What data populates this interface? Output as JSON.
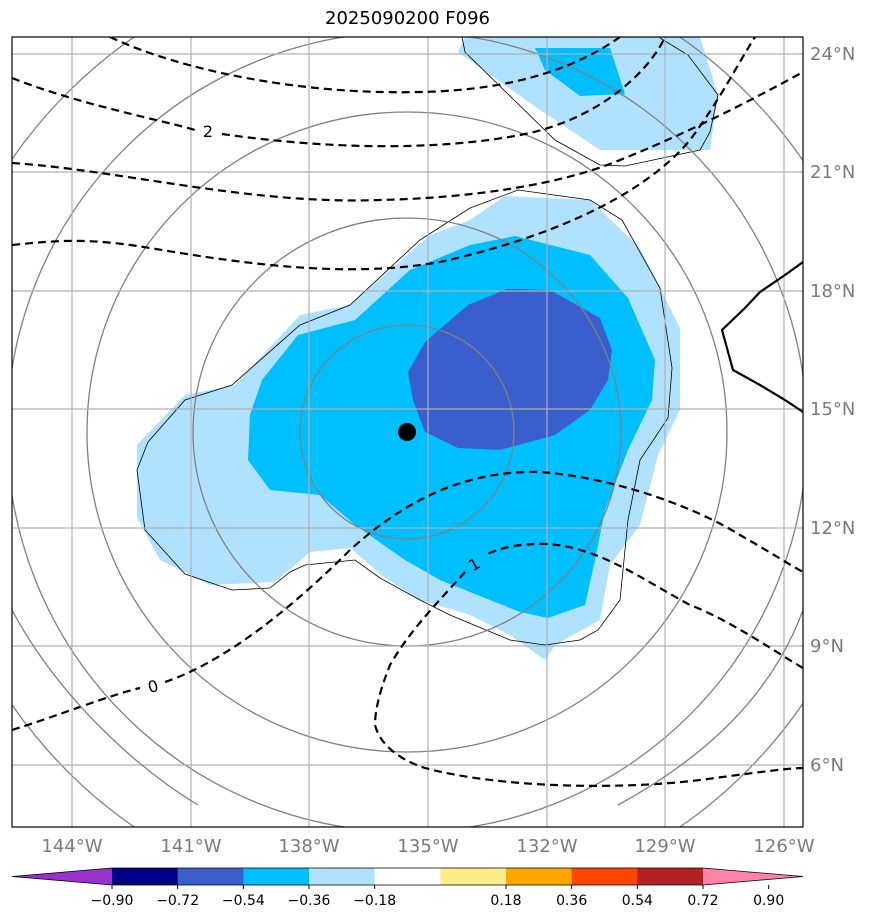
{
  "title": "2025090200 F096",
  "lon_ticks": [
    "144°W",
    "141°W",
    "138°W",
    "135°W",
    "132°W",
    "129°W",
    "126°W"
  ],
  "lat_ticks": [
    "24°N",
    "21°N",
    "18°N",
    "15°N",
    "12°N",
    "9°N",
    "6°N"
  ],
  "contour_labels": [
    "2",
    "1",
    "0"
  ],
  "colorbar": {
    "tick_labels": [
      "−0.90",
      "−0.72",
      "−0.54",
      "−0.36",
      "−0.18",
      "0.18",
      "0.36",
      "0.54",
      "0.72",
      "0.90"
    ],
    "colors": [
      "#9932cc",
      "#00008b",
      "#3a5fcd",
      "#00bfff",
      "#b0e2ff",
      "#ffffff",
      "#ffec8b",
      "#ffa500",
      "#ff4500",
      "#b22222",
      "#ff82ab"
    ]
  },
  "fill_colors": {
    "light_blue": "#b0e2ff",
    "blue": "#00bfff",
    "dark_blue": "#3a5fcd"
  },
  "storm_center": {
    "lon": -135.5,
    "lat": 14.4
  }
}
